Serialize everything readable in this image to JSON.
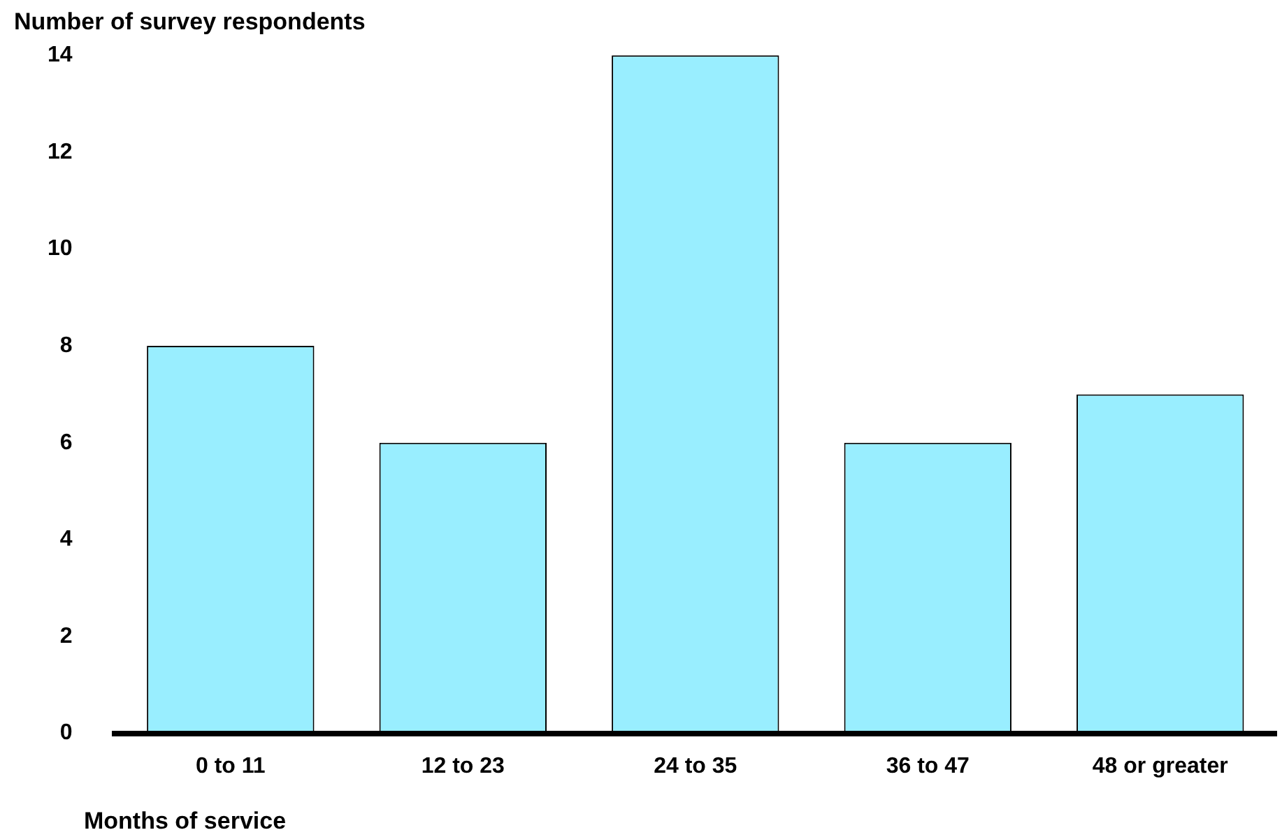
{
  "chart_data": {
    "type": "bar",
    "ylabel": "Number of survey respondents",
    "xlabel": "Months of service",
    "categories": [
      "0 to 11",
      "12 to 23",
      "24 to 35",
      "36 to 47",
      "48 or greater"
    ],
    "values": [
      8,
      6,
      14,
      6,
      7
    ],
    "color": "#99eeff",
    "ylim": [
      0,
      14
    ],
    "yticks": [
      0,
      2,
      4,
      6,
      8,
      10,
      12,
      14
    ],
    "grid": false,
    "legend": false
  }
}
